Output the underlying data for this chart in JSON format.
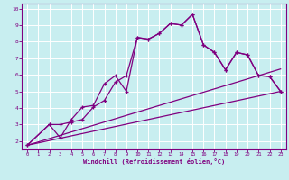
{
  "xlabel": "Windchill (Refroidissement éolien,°C)",
  "bg_color": "#c8eef0",
  "line_color": "#800080",
  "grid_color": "#ffffff",
  "xlim": [
    -0.5,
    23.5
  ],
  "ylim": [
    1.5,
    10.3
  ],
  "yticks": [
    2,
    3,
    4,
    5,
    6,
    7,
    8,
    9,
    10
  ],
  "xticks": [
    0,
    1,
    2,
    3,
    4,
    5,
    6,
    7,
    8,
    9,
    10,
    11,
    12,
    13,
    14,
    15,
    16,
    17,
    18,
    19,
    20,
    21,
    22,
    23
  ],
  "curve1_x": [
    0,
    2,
    3,
    4,
    5,
    6,
    7,
    8,
    9,
    10,
    11,
    12,
    13,
    14,
    15,
    16,
    17,
    18,
    19,
    20,
    21,
    22,
    23
  ],
  "curve1_y": [
    1.75,
    3.0,
    3.0,
    3.15,
    3.3,
    4.05,
    4.45,
    5.55,
    5.95,
    8.25,
    8.15,
    8.5,
    9.1,
    9.0,
    9.65,
    7.8,
    7.35,
    6.3,
    7.35,
    7.2,
    5.95,
    5.9,
    5.0
  ],
  "curve2_x": [
    0,
    2,
    3,
    4,
    5,
    6,
    7,
    8,
    9,
    10,
    11,
    12,
    13,
    14,
    15,
    16,
    17,
    18,
    19,
    20,
    21,
    22,
    23
  ],
  "curve2_y": [
    1.75,
    3.0,
    2.2,
    3.3,
    4.05,
    4.15,
    5.45,
    5.95,
    5.0,
    8.25,
    8.15,
    8.5,
    9.1,
    9.0,
    9.65,
    7.8,
    7.35,
    6.3,
    7.35,
    7.2,
    5.95,
    5.9,
    5.0
  ],
  "line1_x": [
    0,
    23
  ],
  "line1_y": [
    1.75,
    6.35
  ],
  "line2_x": [
    0,
    23
  ],
  "line2_y": [
    1.75,
    5.0
  ]
}
